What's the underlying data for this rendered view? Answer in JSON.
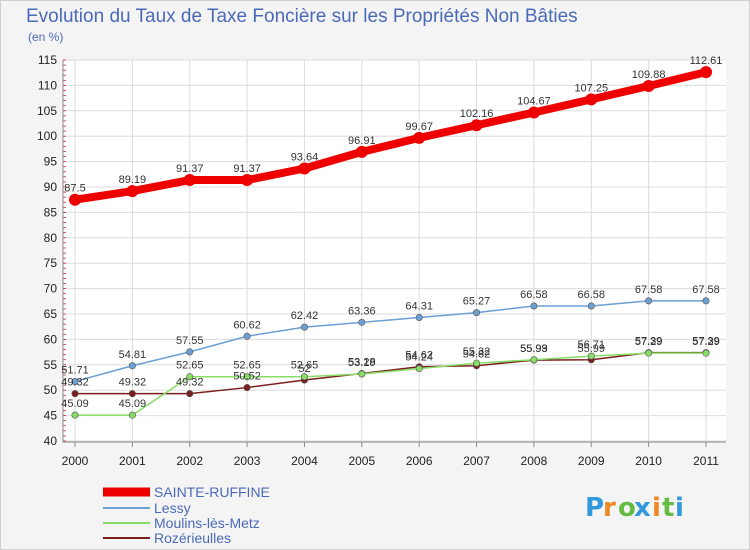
{
  "chart_data": {
    "type": "line",
    "title": "Evolution du Taux de Taxe Foncière sur les Propriétés Non Bâties",
    "subtitle": "(en %)",
    "xlabel": "",
    "ylabel": "",
    "ylim": [
      40,
      115
    ],
    "grid": true,
    "legend_position": "bottom-left",
    "categories": [
      "2000",
      "2001",
      "2002",
      "2003",
      "2004",
      "2005",
      "2006",
      "2007",
      "2008",
      "2009",
      "2010",
      "2011"
    ],
    "yticks": [
      40,
      45,
      50,
      55,
      60,
      65,
      70,
      75,
      80,
      85,
      90,
      95,
      100,
      105,
      110,
      115
    ],
    "series": [
      {
        "name": "SAINTE-RUFFINE",
        "color": "#ee0000",
        "values": [
          87.5,
          89.19,
          91.37,
          91.37,
          93.64,
          96.91,
          99.67,
          102.16,
          104.67,
          107.25,
          109.88,
          112.61
        ],
        "labels": [
          "87.5",
          "89.19",
          "91.37",
          "91.37",
          "93.64",
          "96.91",
          "99.67",
          "102.16",
          "104.67",
          "107.25",
          "109.88",
          "112.61"
        ]
      },
      {
        "name": "Lessy",
        "color": "#6c9fd2",
        "values": [
          51.71,
          54.81,
          57.55,
          60.62,
          62.42,
          63.36,
          64.31,
          65.27,
          66.58,
          66.58,
          67.58,
          67.58
        ],
        "labels": [
          "51.71",
          "54.81",
          "57.55",
          "60.62",
          "62.42",
          "63.36",
          "64.31",
          "65.27",
          "66.58",
          "66.58",
          "67.58",
          "67.58"
        ]
      },
      {
        "name": "Moulins-lès-Metz",
        "color": "#88dd66",
        "values": [
          45.09,
          45.09,
          52.65,
          52.65,
          52.65,
          53.19,
          54.24,
          55.32,
          55.99,
          56.71,
          57.29,
          57.29
        ],
        "labels": [
          "45.09",
          "45.09",
          "52.65",
          "52.65",
          "52.65",
          "53.19",
          "54.24",
          "55.32",
          "55.99",
          "56.71",
          "57.29",
          "57.29"
        ]
      },
      {
        "name": "Rozérieulles",
        "color": "#7a1e1e",
        "values": [
          49.32,
          49.32,
          49.32,
          50.52,
          52.0,
          53.28,
          54.62,
          54.82,
          55.93,
          55.99,
          57.39,
          57.39
        ],
        "labels": [
          "49.32",
          "49.32",
          "49.32",
          "50.52",
          "52",
          "53.28",
          "54.62",
          "54.82",
          "55.93",
          "55.99",
          "57.39",
          "57.39"
        ]
      }
    ]
  },
  "logo": {
    "letters": [
      "P",
      "r",
      "o",
      "x",
      "i",
      "t",
      "i"
    ],
    "colors": [
      "#3399dd",
      "#ee8822",
      "#66bb44",
      "#3399dd",
      "#ee8822",
      "#66bb44",
      "#3399dd"
    ]
  }
}
